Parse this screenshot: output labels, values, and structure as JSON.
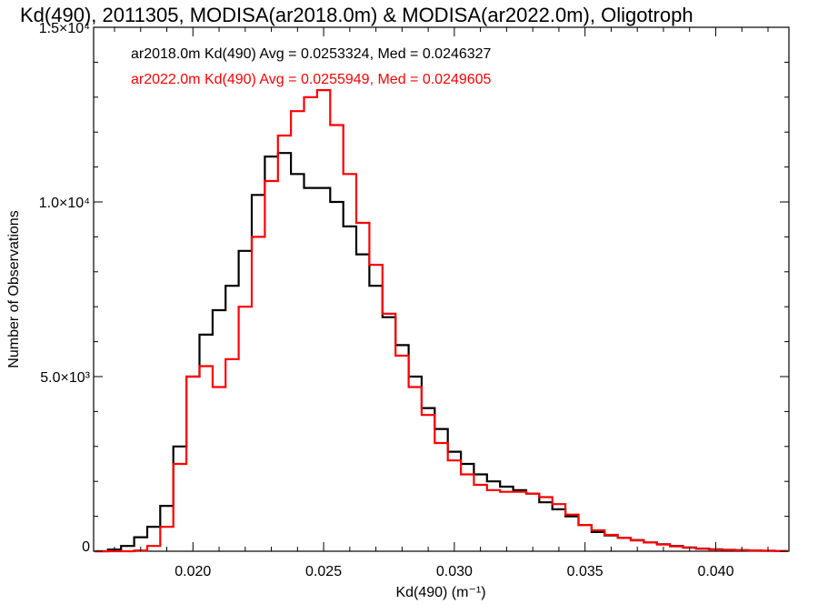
{
  "chart_data": {
    "type": "histogram",
    "title": "Kd(490), 2011305, MODISA(ar2018.0m) & MODISA(ar2022.0m), Oligotroph",
    "xlabel": "Kd(490) (m⁻¹)",
    "ylabel": "Number of Observations",
    "xlim": [
      0.0162,
      0.0428
    ],
    "ylim": [
      0,
      15000
    ],
    "x_ticks": [
      {
        "value": 0.02,
        "label": "0.020"
      },
      {
        "value": 0.025,
        "label": "0.025"
      },
      {
        "value": 0.03,
        "label": "0.030"
      },
      {
        "value": 0.035,
        "label": "0.035"
      },
      {
        "value": 0.04,
        "label": "0.040"
      }
    ],
    "y_ticks": [
      {
        "value": 0,
        "label": "0"
      },
      {
        "value": 5000,
        "label": "5.0×10³"
      },
      {
        "value": 10000,
        "label": "1.0×10⁴"
      },
      {
        "value": 15000,
        "label": "1.5×10⁴"
      }
    ],
    "grid": false,
    "legend_position": "top-left",
    "series": [
      {
        "name": "ar2018.0m",
        "legend_text": "ar2018.0m Kd(490) Avg = 0.0253324, Med = 0.0246327",
        "color": "#000000",
        "x": [
          0.0165,
          0.017,
          0.0175,
          0.018,
          0.0185,
          0.019,
          0.0195,
          0.02,
          0.0205,
          0.021,
          0.0215,
          0.022,
          0.0225,
          0.023,
          0.0235,
          0.024,
          0.0245,
          0.025,
          0.0255,
          0.026,
          0.0265,
          0.027,
          0.0275,
          0.028,
          0.0285,
          0.029,
          0.0295,
          0.03,
          0.0305,
          0.031,
          0.0315,
          0.032,
          0.0325,
          0.033,
          0.0335,
          0.034,
          0.0345,
          0.035,
          0.0355,
          0.036,
          0.0365,
          0.037,
          0.0375,
          0.038,
          0.0385,
          0.039,
          0.0395,
          0.04,
          0.0405,
          0.041,
          0.0415,
          0.042,
          0.0425
        ],
        "y": [
          0,
          50,
          150,
          400,
          700,
          1300,
          3000,
          5000,
          6200,
          6900,
          7600,
          8600,
          10200,
          11300,
          11400,
          10800,
          10400,
          10400,
          10000,
          9300,
          8500,
          7600,
          6700,
          5900,
          5000,
          4100,
          3500,
          2850,
          2500,
          2200,
          2000,
          1850,
          1750,
          1650,
          1400,
          1200,
          1000,
          750,
          550,
          450,
          380,
          320,
          250,
          200,
          150,
          110,
          75,
          55,
          40,
          30,
          20,
          12,
          6
        ]
      },
      {
        "name": "ar2022.0m",
        "legend_text": "ar2022.0m Kd(490) Avg = 0.0255949, Med = 0.0249605",
        "color": "#ff0000",
        "x": [
          0.0165,
          0.017,
          0.0175,
          0.018,
          0.0185,
          0.019,
          0.0195,
          0.02,
          0.0205,
          0.021,
          0.0215,
          0.022,
          0.0225,
          0.023,
          0.0235,
          0.024,
          0.0245,
          0.025,
          0.0255,
          0.026,
          0.0265,
          0.027,
          0.0275,
          0.028,
          0.0285,
          0.029,
          0.0295,
          0.03,
          0.0305,
          0.031,
          0.0315,
          0.032,
          0.0325,
          0.033,
          0.0335,
          0.034,
          0.0345,
          0.035,
          0.0355,
          0.036,
          0.0365,
          0.037,
          0.0375,
          0.038,
          0.0385,
          0.039,
          0.0395,
          0.04,
          0.0405,
          0.041,
          0.0415,
          0.042,
          0.0425
        ],
        "y": [
          0,
          0,
          0,
          20,
          150,
          700,
          2500,
          5000,
          5300,
          4700,
          5500,
          7000,
          9000,
          10600,
          11900,
          12600,
          13000,
          13200,
          12200,
          10800,
          9400,
          8200,
          6800,
          5600,
          4700,
          3900,
          3100,
          2600,
          2200,
          1900,
          1750,
          1700,
          1700,
          1650,
          1550,
          1350,
          1050,
          750,
          600,
          470,
          380,
          310,
          250,
          190,
          140,
          100,
          70,
          50,
          40,
          30,
          20,
          12,
          6
        ]
      }
    ]
  }
}
